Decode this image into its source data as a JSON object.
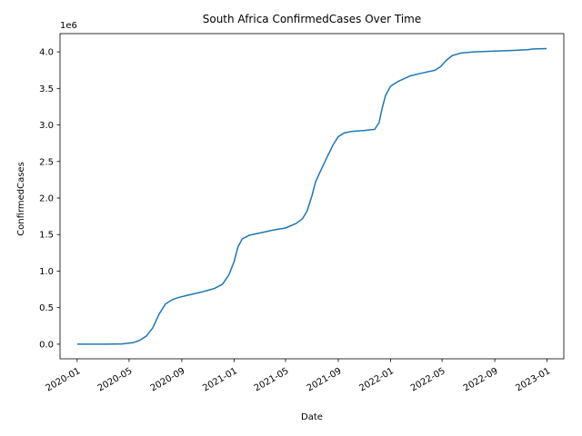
{
  "chart_data": {
    "type": "line",
    "title": "South Africa  ConfirmedCases Over Time",
    "xlabel": "Date",
    "ylabel": "ConfirmedCases",
    "y_offset_label": "1e6",
    "grid": false,
    "legend": "none",
    "xlim": [
      "2019-11-22",
      "2023-02-09"
    ],
    "ylim": [
      -200000,
      4250000
    ],
    "x_ticks": [
      "2020-01",
      "2020-05",
      "2020-09",
      "2021-01",
      "2021-05",
      "2021-09",
      "2022-01",
      "2022-05",
      "2022-09",
      "2023-01"
    ],
    "x_tick_dates": [
      "2020-01-01",
      "2020-05-01",
      "2020-09-01",
      "2021-01-01",
      "2021-05-01",
      "2021-09-01",
      "2022-01-01",
      "2022-05-01",
      "2022-09-01",
      "2023-01-01"
    ],
    "y_ticks": [
      "0.0",
      "0.5",
      "1.0",
      "1.5",
      "2.0",
      "2.5",
      "3.0",
      "3.5",
      "4.0"
    ],
    "y_tick_values": [
      0,
      500000,
      1000000,
      1500000,
      2000000,
      2500000,
      3000000,
      3500000,
      4000000
    ],
    "line_color": "#1f77b4",
    "series": [
      {
        "x": [
          "2020-01-01",
          "2020-03-05",
          "2020-04-15",
          "2020-05-10",
          "2020-05-25",
          "2020-06-10",
          "2020-06-25",
          "2020-07-10",
          "2020-07-25",
          "2020-08-10",
          "2020-08-25",
          "2020-09-15",
          "2020-10-15",
          "2020-11-15",
          "2020-12-05",
          "2020-12-20",
          "2021-01-01",
          "2021-01-10",
          "2021-01-20",
          "2021-02-05",
          "2021-03-01",
          "2021-04-01",
          "2021-05-01",
          "2021-05-25",
          "2021-06-10",
          "2021-06-20",
          "2021-07-01",
          "2021-07-10",
          "2021-07-20",
          "2021-08-05",
          "2021-08-20",
          "2021-09-01",
          "2021-09-15",
          "2021-10-01",
          "2021-11-01",
          "2021-11-25",
          "2021-12-05",
          "2021-12-12",
          "2021-12-20",
          "2022-01-01",
          "2022-01-20",
          "2022-02-15",
          "2022-03-15",
          "2022-04-15",
          "2022-04-28",
          "2022-05-10",
          "2022-05-25",
          "2022-06-15",
          "2022-07-15",
          "2022-09-01",
          "2022-10-15",
          "2022-11-15",
          "2022-12-01",
          "2022-12-31"
        ],
        "y": [
          0,
          200,
          3000,
          20000,
          50000,
          110000,
          220000,
          410000,
          550000,
          610000,
          640000,
          670000,
          710000,
          760000,
          820000,
          950000,
          1130000,
          1330000,
          1440000,
          1490000,
          1520000,
          1560000,
          1590000,
          1650000,
          1720000,
          1820000,
          2020000,
          2220000,
          2350000,
          2550000,
          2730000,
          2840000,
          2890000,
          2910000,
          2925000,
          2940000,
          3030000,
          3220000,
          3400000,
          3530000,
          3600000,
          3670000,
          3710000,
          3750000,
          3800000,
          3880000,
          3950000,
          3985000,
          4000000,
          4010000,
          4020000,
          4030000,
          4040000,
          4045000
        ]
      }
    ]
  }
}
